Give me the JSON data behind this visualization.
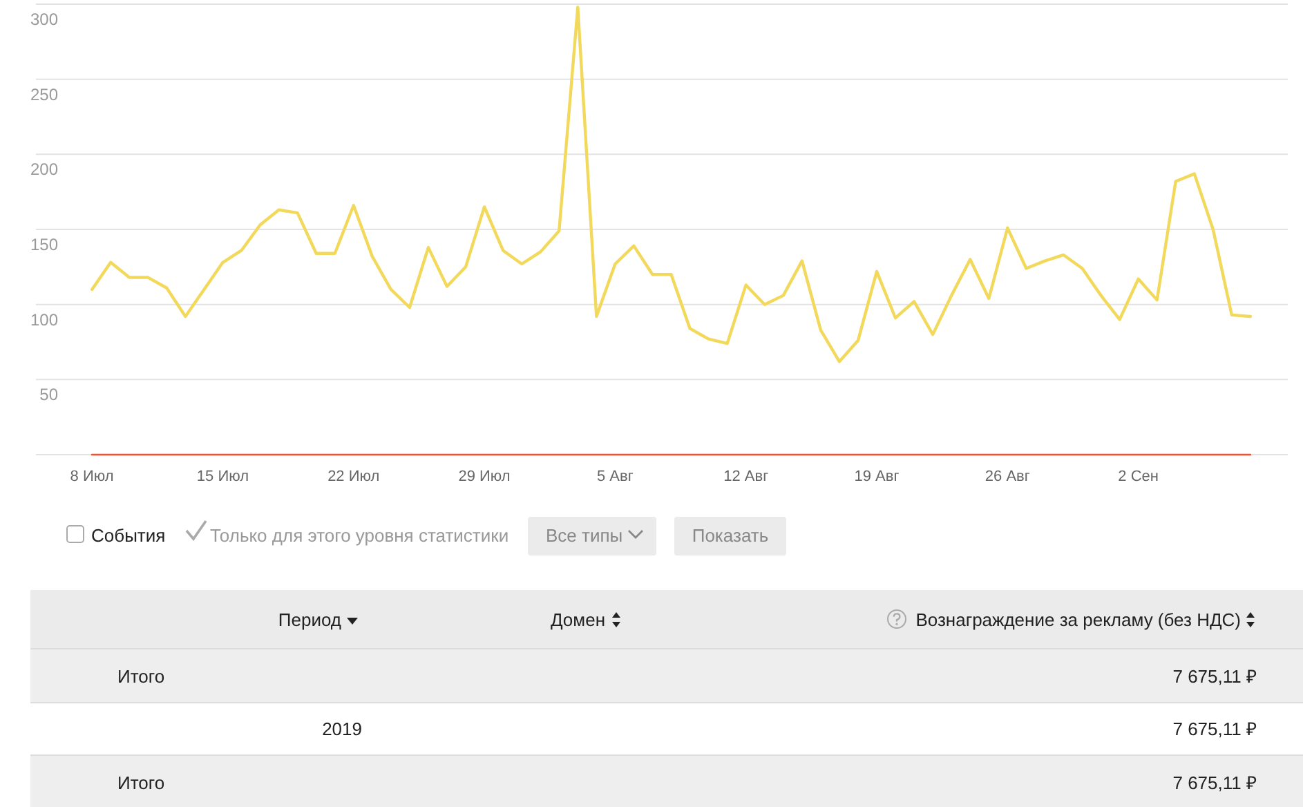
{
  "chart_data": [
    {
      "type": "line",
      "x": [
        "2019-07-08",
        "2019-07-09",
        "2019-07-10",
        "2019-07-11",
        "2019-07-12",
        "2019-07-13",
        "2019-07-14",
        "2019-07-15",
        "2019-07-16",
        "2019-07-17",
        "2019-07-18",
        "2019-07-19",
        "2019-07-20",
        "2019-07-21",
        "2019-07-22",
        "2019-07-23",
        "2019-07-24",
        "2019-07-25",
        "2019-07-26",
        "2019-07-27",
        "2019-07-28",
        "2019-07-29",
        "2019-07-30",
        "2019-07-31",
        "2019-08-01",
        "2019-08-02",
        "2019-08-03",
        "2019-08-04",
        "2019-08-05",
        "2019-08-06",
        "2019-08-07",
        "2019-08-08",
        "2019-08-09",
        "2019-08-10",
        "2019-08-11",
        "2019-08-12",
        "2019-08-13",
        "2019-08-14",
        "2019-08-15",
        "2019-08-16",
        "2019-08-17",
        "2019-08-18",
        "2019-08-19",
        "2019-08-20",
        "2019-08-21",
        "2019-08-22",
        "2019-08-23",
        "2019-08-24",
        "2019-08-25",
        "2019-08-26",
        "2019-08-27",
        "2019-08-28",
        "2019-08-29",
        "2019-08-30",
        "2019-08-31",
        "2019-09-01",
        "2019-09-02",
        "2019-09-03",
        "2019-09-04",
        "2019-09-05",
        "2019-09-06",
        "2019-09-07",
        "2019-09-08"
      ],
      "series": [
        {
          "color": "#f2d95c",
          "values": [
            110,
            128,
            118,
            118,
            111,
            92,
            110,
            128,
            136,
            153,
            163,
            161,
            134,
            134,
            166,
            132,
            110,
            98,
            138,
            112,
            125,
            165,
            136,
            127,
            135,
            149,
            298,
            92,
            127,
            139,
            120,
            120,
            84,
            77,
            74,
            113,
            100,
            106,
            129,
            83,
            62,
            76,
            122,
            91,
            102,
            80,
            106,
            130,
            104,
            151,
            124,
            129,
            133,
            124,
            106,
            90,
            117,
            103,
            182,
            187,
            150,
            93,
            92
          ]
        },
        {
          "color": "#ff4a2b",
          "values": [
            0,
            0,
            0,
            0,
            0,
            0,
            0,
            0,
            0,
            0,
            0,
            0,
            0,
            0,
            0,
            0,
            0,
            0,
            0,
            0,
            0,
            0,
            0,
            0,
            0,
            0,
            0,
            0,
            0,
            0,
            0,
            0,
            0,
            0,
            0,
            0,
            0,
            0,
            0,
            0,
            0,
            0,
            0,
            0,
            0,
            0,
            0,
            0,
            0,
            0,
            0,
            0,
            0,
            0,
            0,
            0,
            0,
            0,
            0,
            0,
            0,
            0,
            0
          ]
        }
      ],
      "xlim": [
        "2019-07-05",
        "2019-09-10"
      ],
      "xticks": [
        {
          "value": "2019-07-08",
          "label": "8 Июл"
        },
        {
          "value": "2019-07-15",
          "label": "15 Июл"
        },
        {
          "value": "2019-07-22",
          "label": "22 Июл"
        },
        {
          "value": "2019-07-29",
          "label": "29 Июл"
        },
        {
          "value": "2019-08-05",
          "label": "5 Авг"
        },
        {
          "value": "2019-08-12",
          "label": "12 Авг"
        },
        {
          "value": "2019-08-19",
          "label": "19 Авг"
        },
        {
          "value": "2019-08-26",
          "label": "26 Авг"
        },
        {
          "value": "2019-09-02",
          "label": "2 Сен"
        }
      ],
      "ylim": [
        0,
        300
      ],
      "yticks": [
        {
          "value": 0,
          "label": null
        },
        50,
        100,
        150,
        200,
        250,
        300
      ],
      "grid": "y",
      "marker": "none",
      "line_style": "solid"
    },
    {
      "type": "other",
      "annotations": [
        "События",
        "Только для этого уровня статистики",
        "Все типы",
        "Показать",
        "Период",
        "Домен",
        "Вознаграждение за рекламу (без НДС)",
        "Итого",
        "7 675,11 ₽",
        "2019",
        "7 675,11 ₽",
        "Итого",
        "7 675,11 ₽"
      ]
    }
  ]
}
